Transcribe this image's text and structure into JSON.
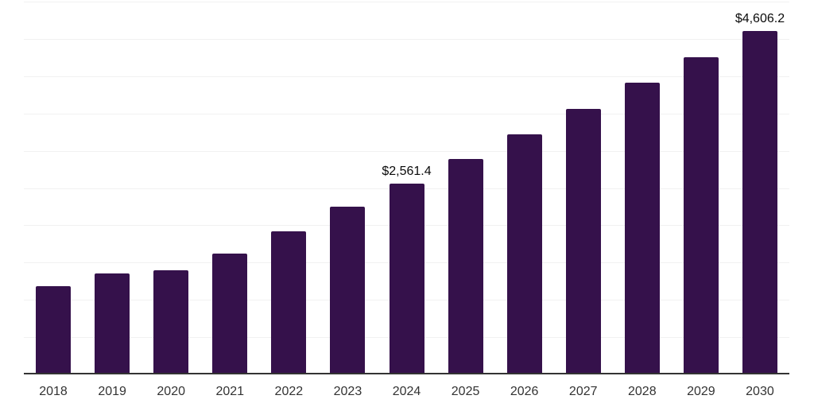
{
  "chart_data": {
    "type": "bar",
    "title": "",
    "xlabel": "",
    "ylabel": "",
    "categories": [
      "2018",
      "2019",
      "2020",
      "2021",
      "2022",
      "2023",
      "2024",
      "2025",
      "2026",
      "2027",
      "2028",
      "2029",
      "2030"
    ],
    "values": [
      1180,
      1350,
      1395,
      1625,
      1915,
      2245,
      2561.4,
      2890,
      3220,
      3565,
      3910,
      4255,
      4606.2
    ],
    "annotations": [
      {
        "category": "2024",
        "text": "$2,561.4"
      },
      {
        "category": "2030",
        "text": "$4,606.2"
      }
    ],
    "ylim": [
      0,
      5000
    ],
    "grid_step": 500,
    "grid_on": true,
    "legend_position": "none",
    "colors": {
      "bar": "#35114B",
      "gridline": "#f1f1f1",
      "axis_line": "#333333",
      "tick_label": "#333333",
      "annotation_text": "#0a0a0a",
      "background": "#ffffff"
    }
  }
}
